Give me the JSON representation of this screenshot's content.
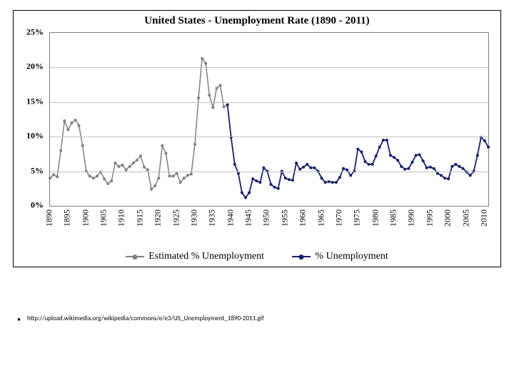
{
  "chart": {
    "type": "line",
    "title": "United States - Unemployment Rate (1890 - 2011)",
    "title_fontsize": 15,
    "title_fontweight": "bold",
    "background_color": "#ffffff",
    "plot_border_color": "#808080",
    "grid_color": "#c0c0c0",
    "outer_border_color": "#000000",
    "x": {
      "min": 1890,
      "max": 2011,
      "tick_start": 1890,
      "tick_step": 5,
      "tick_end": 2010,
      "tick_rotation_deg": -90,
      "tick_fontsize": 12
    },
    "y": {
      "min": 0,
      "max": 25,
      "tick_step": 5,
      "tick_suffix": "%",
      "tick_fontsize": 12,
      "tick_fontweight": "bold"
    },
    "series": [
      {
        "id": "estimated",
        "label": "Estimated % Unemployment",
        "color": "#808080",
        "line_width": 1.5,
        "marker": "circle",
        "marker_size": 4,
        "marker_fill": "#808080",
        "points": [
          [
            1890,
            4.0
          ],
          [
            1891,
            4.5
          ],
          [
            1892,
            4.2
          ],
          [
            1893,
            8.0
          ],
          [
            1894,
            12.3
          ],
          [
            1895,
            11.0
          ],
          [
            1896,
            12.0
          ],
          [
            1897,
            12.4
          ],
          [
            1898,
            11.6
          ],
          [
            1899,
            8.7
          ],
          [
            1900,
            5.0
          ],
          [
            1901,
            4.3
          ],
          [
            1902,
            4.0
          ],
          [
            1903,
            4.3
          ],
          [
            1904,
            4.9
          ],
          [
            1905,
            3.9
          ],
          [
            1906,
            3.2
          ],
          [
            1907,
            3.6
          ],
          [
            1908,
            6.2
          ],
          [
            1909,
            5.7
          ],
          [
            1910,
            5.9
          ],
          [
            1911,
            5.2
          ],
          [
            1912,
            5.7
          ],
          [
            1913,
            6.2
          ],
          [
            1914,
            6.6
          ],
          [
            1915,
            7.2
          ],
          [
            1916,
            5.6
          ],
          [
            1917,
            5.2
          ],
          [
            1918,
            2.4
          ],
          [
            1919,
            2.9
          ],
          [
            1920,
            4.0
          ],
          [
            1921,
            8.7
          ],
          [
            1922,
            7.6
          ],
          [
            1923,
            4.3
          ],
          [
            1924,
            4.3
          ],
          [
            1925,
            4.7
          ],
          [
            1926,
            3.4
          ],
          [
            1927,
            4.0
          ],
          [
            1928,
            4.4
          ],
          [
            1929,
            4.6
          ],
          [
            1930,
            8.9
          ],
          [
            1931,
            15.6
          ],
          [
            1932,
            21.3
          ],
          [
            1933,
            20.6
          ],
          [
            1934,
            16.0
          ],
          [
            1935,
            14.2
          ],
          [
            1936,
            17.0
          ],
          [
            1937,
            17.4
          ],
          [
            1938,
            14.3
          ],
          [
            1939,
            14.6
          ]
        ]
      },
      {
        "id": "actual",
        "label": "% Unemployment",
        "color": "#17216b",
        "line_width": 1.8,
        "marker": "circle",
        "marker_size": 4,
        "marker_fill": "#17216b",
        "points": [
          [
            1939,
            14.6
          ],
          [
            1940,
            9.9
          ],
          [
            1941,
            6.0
          ],
          [
            1942,
            4.7
          ],
          [
            1943,
            1.9
          ],
          [
            1944,
            1.2
          ],
          [
            1945,
            1.9
          ],
          [
            1946,
            3.9
          ],
          [
            1947,
            3.6
          ],
          [
            1948,
            3.4
          ],
          [
            1949,
            5.5
          ],
          [
            1950,
            5.0
          ],
          [
            1951,
            3.1
          ],
          [
            1952,
            2.7
          ],
          [
            1953,
            2.5
          ],
          [
            1954,
            5.0
          ],
          [
            1955,
            4.0
          ],
          [
            1956,
            3.8
          ],
          [
            1957,
            3.7
          ],
          [
            1958,
            6.2
          ],
          [
            1959,
            5.3
          ],
          [
            1960,
            5.6
          ],
          [
            1961,
            6.0
          ],
          [
            1962,
            5.5
          ],
          [
            1963,
            5.5
          ],
          [
            1964,
            5.0
          ],
          [
            1965,
            4.0
          ],
          [
            1966,
            3.4
          ],
          [
            1967,
            3.5
          ],
          [
            1968,
            3.4
          ],
          [
            1969,
            3.4
          ],
          [
            1970,
            4.1
          ],
          [
            1971,
            5.4
          ],
          [
            1972,
            5.2
          ],
          [
            1973,
            4.4
          ],
          [
            1974,
            5.0
          ],
          [
            1975,
            8.2
          ],
          [
            1976,
            7.8
          ],
          [
            1977,
            6.4
          ],
          [
            1978,
            6.0
          ],
          [
            1979,
            6.0
          ],
          [
            1980,
            7.2
          ],
          [
            1981,
            8.5
          ],
          [
            1982,
            9.5
          ],
          [
            1983,
            9.5
          ],
          [
            1984,
            7.3
          ],
          [
            1985,
            7.0
          ],
          [
            1986,
            6.6
          ],
          [
            1987,
            5.7
          ],
          [
            1988,
            5.3
          ],
          [
            1989,
            5.4
          ],
          [
            1990,
            6.3
          ],
          [
            1991,
            7.3
          ],
          [
            1992,
            7.4
          ],
          [
            1993,
            6.5
          ],
          [
            1994,
            5.5
          ],
          [
            1995,
            5.6
          ],
          [
            1996,
            5.4
          ],
          [
            1997,
            4.7
          ],
          [
            1998,
            4.4
          ],
          [
            1999,
            4.0
          ],
          [
            2000,
            3.9
          ],
          [
            2001,
            5.7
          ],
          [
            2002,
            6.0
          ],
          [
            2003,
            5.7
          ],
          [
            2004,
            5.4
          ],
          [
            2005,
            4.9
          ],
          [
            2006,
            4.4
          ],
          [
            2007,
            5.0
          ],
          [
            2008,
            7.3
          ],
          [
            2009,
            9.9
          ],
          [
            2010,
            9.4
          ],
          [
            2011,
            8.5
          ]
        ]
      }
    ],
    "legend": {
      "position": "bottom",
      "fontsize": 14
    }
  },
  "citation": "http://upload.wikimedia.org/wikipedia/commons/e/e3/US_Unemployment_1890-2011.gif"
}
